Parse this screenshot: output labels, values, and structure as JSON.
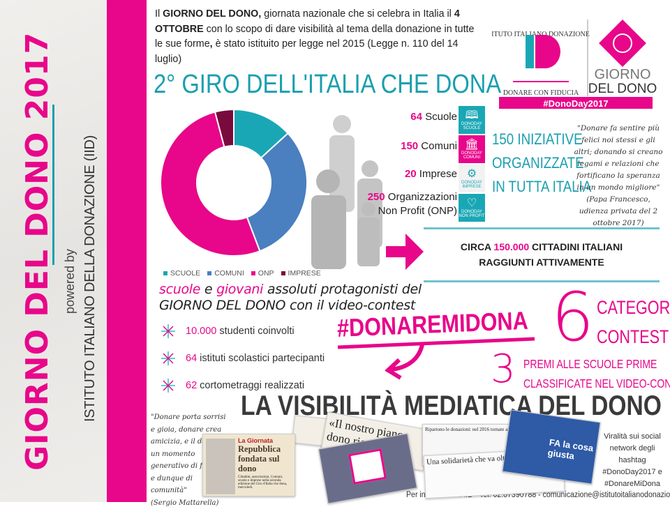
{
  "sidebar": {
    "title": "GIORNO DEL DONO 2017",
    "powered_by": "powered by",
    "institute": "ISTITUTO ITALIANO DELLA DONAZIONE (IID)"
  },
  "intro": {
    "p1_bold": "GIORNO DEL DONO,",
    "p1_pre": "Il ",
    "p1_rest": " giornata nazionale che si celebra in Italia il ",
    "p2_bold": "4 OTTOBRE",
    "p2_rest": " con lo scopo di dare visibilità al tema della donazione in tutte le sue forme",
    "p3_bold": ",",
    "p3_rest": " è stato istituito per legge nel 2015 (Legge n. 110 del 14 luglio)"
  },
  "logo": {
    "arc_text": "ISTITUTO ITALIANO DONAZIONE",
    "monogram": "ID",
    "tagline": "DONARE CON FIDUCIA",
    "giorno": "GIORNO",
    "del_dono": "DEL DONO",
    "hashtag": "#DonoDay2017"
  },
  "section_title": "2° GIRO DELL'ITALIA CHE DONA",
  "chart_data": {
    "type": "pie",
    "donut": true,
    "categories": [
      "SCUOLE",
      "COMUNI",
      "ONP",
      "IMPRESE"
    ],
    "values": [
      64,
      150,
      250,
      20
    ],
    "colors": [
      "#1aa7b5",
      "#4a7fc0",
      "#e8068a",
      "#7a0a3e"
    ],
    "legend_position": "bottom"
  },
  "stats": [
    {
      "num": "64",
      "label": " Scuole",
      "icon": "book-icon",
      "icon_label": "SCUOLE",
      "color": "#1aa7b5"
    },
    {
      "num": "150",
      "label": " Comuni",
      "icon": "building-icon",
      "icon_label": "COMUNI",
      "color": "#e8068a"
    },
    {
      "num": "20",
      "label": " Imprese",
      "icon": "gears-icon",
      "icon_label": "IMPRESE",
      "color": "#f2f2f2"
    },
    {
      "num": "250",
      "label": " Organizzazioni",
      "label2": "Non Profit (ONP)",
      "icon": "heart-icon",
      "icon_label": "NON PROFIT",
      "color": "#1aa7b5"
    }
  ],
  "icon_brand": "DONODAY",
  "iniziative": [
    "150 INIZIATIVE",
    "ORGANIZZATE",
    "IN TUTTA ITALIA"
  ],
  "papa_quote": {
    "text": "\"Donare fa sentire più felici noi stessi e gli altri; donando si creano legami e relazioni che fortificano la speranza in un mondo migliore\"",
    "source": "(Papa Francesco, udienza privata del 2 ottobre 2017)"
  },
  "reach": {
    "pre": "CIRCA ",
    "num": "150.000",
    "post": " CITTADINI ITALIANI",
    "line2": "RAGGIUNTI ATTIVAMENTE"
  },
  "contest_sub": {
    "w1": "scuole",
    "w2": " e ",
    "w3": "giovani",
    "rest1": " assoluti protagonisti del",
    "line2": "GIORNO DEL DONO con il video-contest"
  },
  "bullets": [
    {
      "num": "10.000",
      "text": " studenti coinvolti"
    },
    {
      "num": "64",
      "text": " istituti scolastici partecipanti"
    },
    {
      "num": "62",
      "text": " cortometraggi realizzati"
    }
  ],
  "hashtag": "#DONAREMIDONA",
  "categorie": {
    "num": "6",
    "l1": "CATEGORIE",
    "l2": "CONTEST"
  },
  "premi": {
    "num": "3",
    "l1": "PREMI ALLE SCUOLE PRIME",
    "l2": "CLASSIFICATE NEL VIDEO-CONTEST"
  },
  "media_title": "LA VISIBILITÀ MEDIATICA DEL DONO",
  "mattarella_quote": {
    "text": "\"Donare porta sorrisi e gioia, donare crea amicizia, e il dono è un momento generativo di fiducia, e dunque di comunità\"",
    "source": "(Sergio Mattarella)"
  },
  "clippings": [
    {
      "kicker": "La Giornata",
      "headline": "Repubblica fondata sul dono",
      "body": "Cittadini, associazioni, Comuni, scuole e imprese nella seconda edizione del Giro d'Italia che dona, mercoledì."
    },
    {
      "headline": "«Il nostro piano dono ricevuto da con..."
    },
    {
      "headline": "Ripartono le donazioni: nel 2016 tornate ai livelli pre-crisi"
    },
    {
      "headline": "Una solidarietà che va oltre le emergenze"
    },
    {
      "headline": "FA la cosa giusta"
    }
  ],
  "viral": {
    "text": "Viralità sui social network degli hashtag",
    "tag1": "#DonoDay2017 e",
    "tag2": "#DonareMiDona"
  },
  "footer": "Per informazioni: IID - Tel. 02.87390788 - comunicazione@istitutoitalianodonazione.it"
}
